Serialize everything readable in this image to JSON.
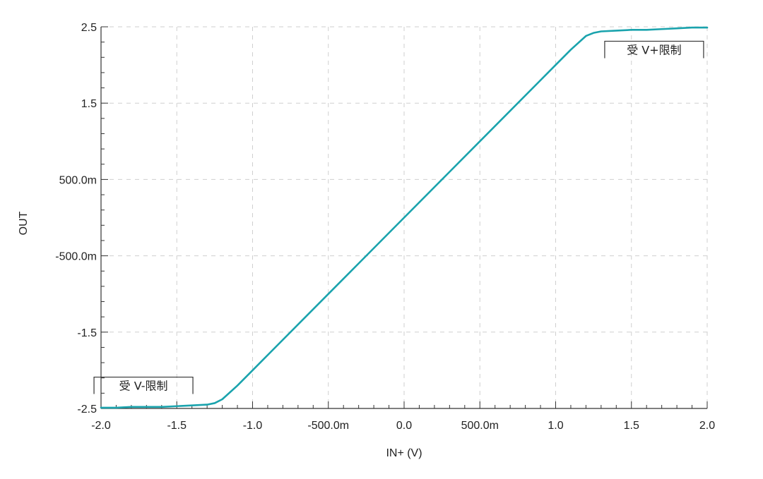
{
  "chart_data": {
    "type": "line",
    "xlabel": "IN+ (V)",
    "ylabel": "OUT",
    "xlim": [
      -2.0,
      2.0
    ],
    "ylim": [
      -2.5,
      2.5
    ],
    "grid": true,
    "x_ticks": [
      {
        "value": -2.0,
        "label": "-2.0"
      },
      {
        "value": -1.5,
        "label": "-1.5"
      },
      {
        "value": -1.0,
        "label": "-1.0"
      },
      {
        "value": -0.5,
        "label": "-500.0m"
      },
      {
        "value": 0.0,
        "label": "0.0"
      },
      {
        "value": 0.5,
        "label": "500.0m"
      },
      {
        "value": 1.0,
        "label": "1.0"
      },
      {
        "value": 1.5,
        "label": "1.5"
      },
      {
        "value": 2.0,
        "label": "2.0"
      }
    ],
    "y_ticks": [
      {
        "value": 2.5,
        "label": "2.5"
      },
      {
        "value": 1.5,
        "label": "1.5"
      },
      {
        "value": 0.5,
        "label": "500.0m"
      },
      {
        "value": -0.5,
        "label": "-500.0m"
      },
      {
        "value": -1.5,
        "label": "-1.5"
      },
      {
        "value": -2.5,
        "label": "-2.5"
      }
    ],
    "series": [
      {
        "color": "#1aa3ad",
        "x": [
          -2.0,
          -1.9,
          -1.8,
          -1.7,
          -1.6,
          -1.5,
          -1.4,
          -1.3,
          -1.25,
          -1.2,
          -1.1,
          -1.0,
          -0.5,
          0.0,
          0.5,
          1.0,
          1.1,
          1.2,
          1.25,
          1.3,
          1.4,
          1.5,
          1.6,
          1.7,
          1.8,
          1.9,
          2.0
        ],
        "y": [
          -2.49,
          -2.49,
          -2.48,
          -2.48,
          -2.48,
          -2.47,
          -2.46,
          -2.45,
          -2.43,
          -2.38,
          -2.2,
          -2.0,
          -1.0,
          0.0,
          1.0,
          2.0,
          2.2,
          2.38,
          2.42,
          2.44,
          2.45,
          2.46,
          2.46,
          2.47,
          2.48,
          2.49,
          2.49
        ]
      }
    ],
    "annotations": [
      {
        "text": "受 V+限制",
        "x": 1.65,
        "y": 2.2,
        "bracket": "right-top"
      },
      {
        "text": "受 V-限制",
        "x": -1.72,
        "y": -2.2,
        "bracket": "left-top"
      }
    ]
  }
}
